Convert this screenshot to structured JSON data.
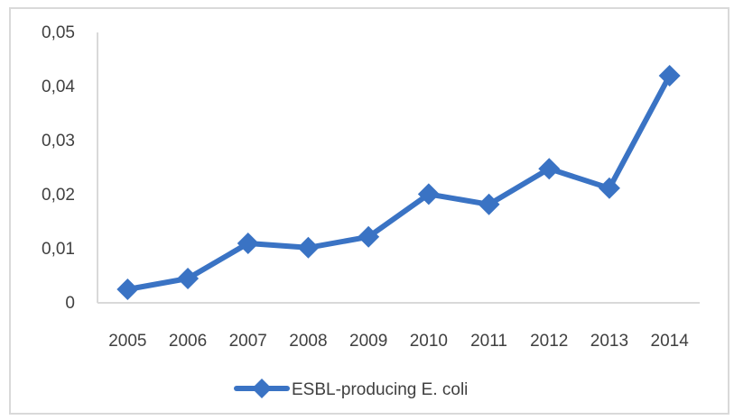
{
  "chart_data": {
    "type": "line",
    "title": "",
    "xlabel": "",
    "ylabel": "",
    "categories": [
      "2005",
      "2006",
      "2007",
      "2008",
      "2009",
      "2010",
      "2011",
      "2012",
      "2013",
      "2014"
    ],
    "series": [
      {
        "name": "ESBL-producing E. coli",
        "values": [
          0.0025,
          0.0045,
          0.011,
          0.0102,
          0.0122,
          0.0201,
          0.0182,
          0.0248,
          0.0212,
          0.042
        ],
        "color": "#3a73c4",
        "marker": "diamond"
      }
    ],
    "ylim": [
      0,
      0.05
    ],
    "yticks": [
      "0",
      "0,01",
      "0,02",
      "0,03",
      "0,04",
      "0,05"
    ],
    "grid": false,
    "legend_position": "bottom"
  }
}
